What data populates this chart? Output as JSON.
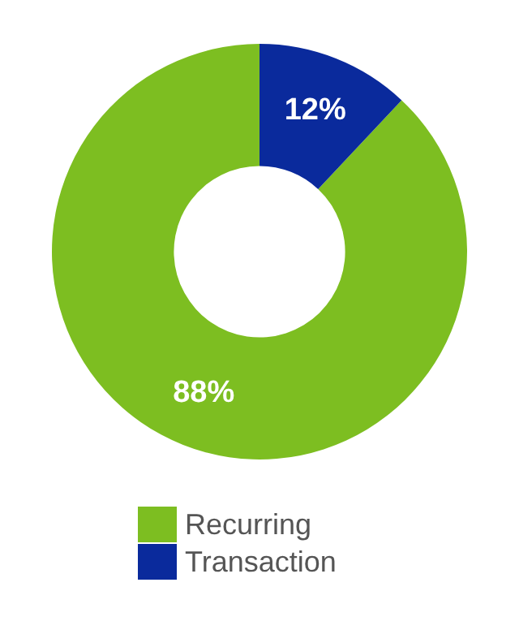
{
  "chart_data": {
    "type": "donut",
    "categories": [
      "Recurring",
      "Transaction"
    ],
    "values": [
      88,
      12
    ],
    "colors": [
      "#7dbe21",
      "#0a2a9c"
    ],
    "value_labels": [
      "88%",
      "12%"
    ],
    "legend": "bottom"
  }
}
